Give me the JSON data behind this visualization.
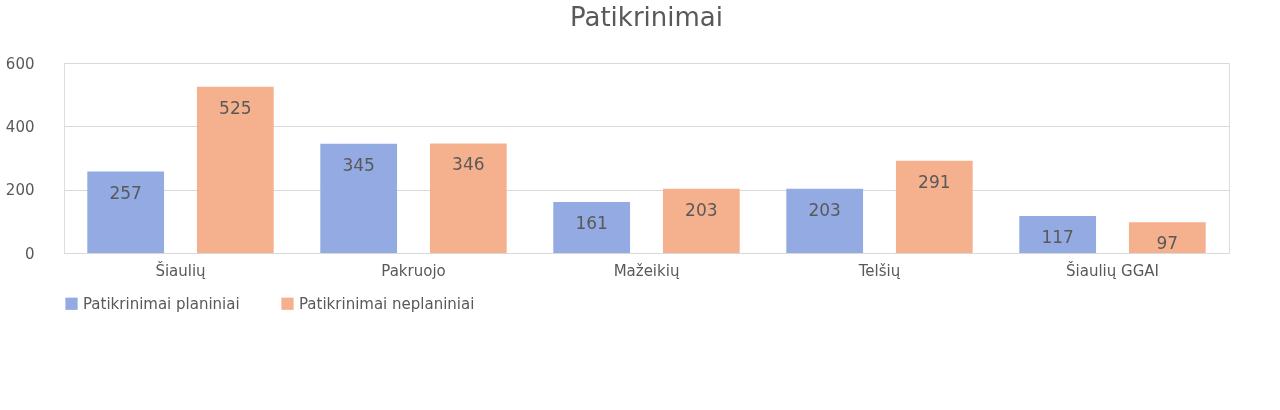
{
  "chart_data": {
    "type": "bar",
    "title": "Patikrinimai",
    "categories": [
      "Šiaulių",
      "Pakruojo",
      "Mažeikių",
      "Telšių",
      "Šiaulių GGAI"
    ],
    "series": [
      {
        "name": "Patikrinimai planiniai",
        "color": "#93abe2",
        "values": [
          257,
          345,
          161,
          203,
          117
        ]
      },
      {
        "name": "Patikrinimai neplaniniai",
        "color": "#f5b08e",
        "values": [
          525,
          346,
          203,
          291,
          97
        ]
      }
    ],
    "ylim": [
      0,
      600
    ],
    "yticks": [
      0,
      200,
      400,
      600
    ],
    "grid": "y",
    "legend": "bottom",
    "data_labels": true
  }
}
